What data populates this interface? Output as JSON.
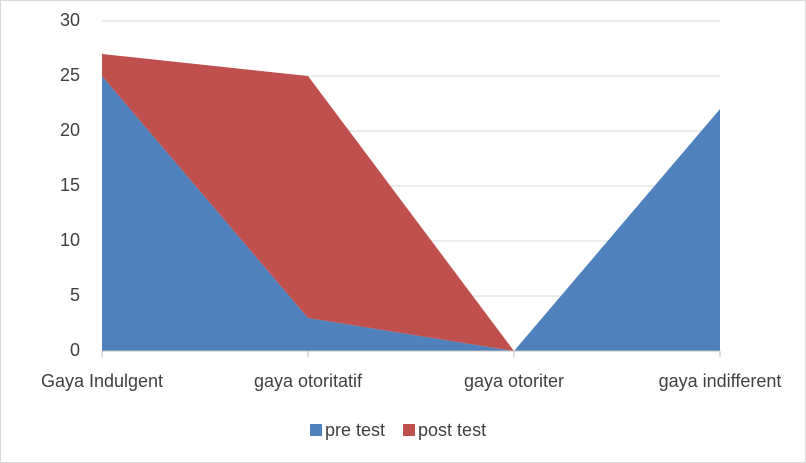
{
  "chart_data": {
    "type": "stacked_area",
    "categories": [
      "Gaya Indulgent",
      "gaya otoritatif",
      "gaya otoriter",
      "gaya indifferent"
    ],
    "series": [
      {
        "name": "pre test",
        "color": "#4f81bd",
        "values": [
          25,
          3,
          0,
          22
        ]
      },
      {
        "name": "post test",
        "color": "#c0504d",
        "values": [
          2,
          22,
          0,
          0
        ]
      }
    ],
    "ylim": [
      0,
      30
    ],
    "yticks": [
      0,
      5,
      10,
      15,
      20,
      25,
      30
    ],
    "grid": true,
    "legend": "bottom"
  }
}
